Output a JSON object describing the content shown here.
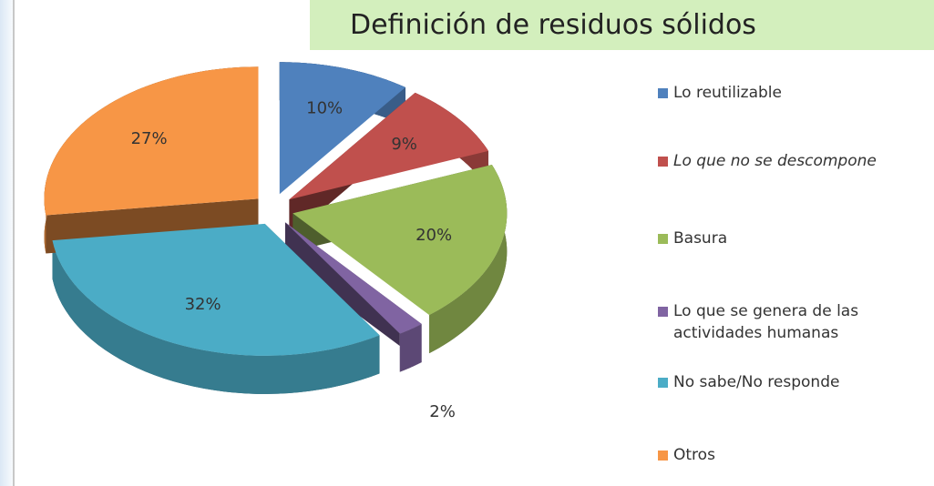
{
  "chart_data": {
    "type": "pie",
    "title": "Definición de residuos sólidos",
    "categories": [
      "Lo reutilizable",
      "Lo que no se descompone",
      "Basura",
      "Lo que se genera de las actividades humanas",
      "No sabe/No responde",
      "Otros"
    ],
    "values": [
      10,
      9,
      20,
      2,
      32,
      27
    ],
    "value_labels": [
      "10%",
      "9%",
      "20%",
      "2%",
      "32%",
      "27%"
    ],
    "colors": [
      "#4f81bd",
      "#c0504d",
      "#9bbb59",
      "#8064a2",
      "#4bacc6",
      "#f79646"
    ],
    "legend": "right"
  }
}
